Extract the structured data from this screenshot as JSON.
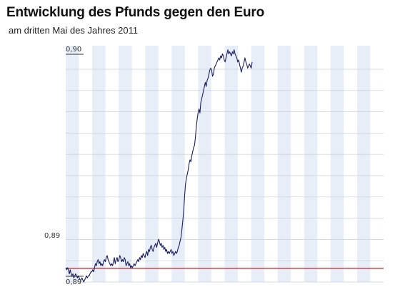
{
  "title": "Entwicklung des Pfunds gegen den Euro",
  "subtitle": "am dritten Mai des Jahres 2011",
  "colors": {
    "line": "#1a1f5e",
    "reference": "#c0202a",
    "band": "#e8eef8",
    "grid": "#c9cfd8"
  },
  "chart_data": {
    "type": "line",
    "title": "Entwicklung des Pfunds gegen den Euro",
    "subtitle": "am dritten Mai des Jahres 2011",
    "xlabel": "",
    "ylabel": "",
    "tick_labels": {
      "top": "0,90",
      "reference": "0,89",
      "bottom": "0,89"
    },
    "ylim": [
      0.8885,
      0.9001
    ],
    "reference_value": 0.88917,
    "grid": true,
    "legend": "none",
    "series": [
      {
        "values": [
          0.8892,
          0.8891,
          0.8892,
          0.8891,
          0.8889,
          0.8891,
          0.8889,
          0.8888,
          0.8889,
          0.8887,
          0.8888,
          0.8889,
          0.8888,
          0.8887,
          0.8888,
          0.8887,
          0.8886,
          0.8886,
          0.8887,
          0.8886,
          0.8885,
          0.8886,
          0.8887,
          0.8888,
          0.8887,
          0.8888,
          0.8888,
          0.8889,
          0.889,
          0.889,
          0.8891,
          0.889,
          0.8892,
          0.8894,
          0.8893,
          0.8895,
          0.8896,
          0.8894,
          0.8895,
          0.8893,
          0.8894,
          0.8893,
          0.8895,
          0.8896,
          0.8895,
          0.8897,
          0.8898,
          0.8896,
          0.8895,
          0.8894,
          0.8893,
          0.8894,
          0.8893,
          0.8895,
          0.8897,
          0.8894,
          0.8896,
          0.8897,
          0.8895,
          0.8896,
          0.8898,
          0.8897,
          0.8895,
          0.8896,
          0.8895,
          0.8897,
          0.8896,
          0.8893,
          0.8894,
          0.8895,
          0.8893,
          0.8894,
          0.8892,
          0.8893,
          0.8892,
          0.8893,
          0.8894,
          0.8893,
          0.8894,
          0.8895,
          0.8896,
          0.8895,
          0.8897,
          0.8896,
          0.8898,
          0.8897,
          0.8899,
          0.8898,
          0.8897,
          0.8899,
          0.89,
          0.8898,
          0.8901,
          0.89,
          0.8902,
          0.8903,
          0.8901,
          0.89,
          0.8902,
          0.8903,
          0.8904,
          0.8902,
          0.8904,
          0.8906,
          0.8905,
          0.8903,
          0.8904,
          0.8902,
          0.8903,
          0.8901,
          0.8902,
          0.89,
          0.8901,
          0.8899,
          0.89,
          0.8899,
          0.89,
          0.8901,
          0.8899,
          0.89,
          0.8898,
          0.8899,
          0.89,
          0.8899,
          0.89,
          0.8902,
          0.8903,
          0.8905,
          0.8907,
          0.8911,
          0.8915,
          0.892,
          0.8927,
          0.8933,
          0.8936,
          0.8938,
          0.894,
          0.8943,
          0.8945,
          0.8944,
          0.8947,
          0.8949,
          0.8951,
          0.8952,
          0.8956,
          0.8961,
          0.8965,
          0.8968,
          0.897,
          0.8968,
          0.8973,
          0.8975,
          0.8977,
          0.8979,
          0.8981,
          0.8983,
          0.8981,
          0.8984,
          0.8985,
          0.8987,
          0.8989,
          0.899,
          0.8989,
          0.8986,
          0.8987,
          0.899,
          0.8991,
          0.8992,
          0.8993,
          0.8994,
          0.8995,
          0.8994,
          0.8996,
          0.8995,
          0.8997,
          0.8996,
          0.8994,
          0.8993,
          0.8995,
          0.8997,
          0.8999,
          0.8997,
          0.8998,
          0.8997,
          0.8996,
          0.8998,
          0.8997,
          0.8999,
          0.8997,
          0.8996,
          0.8995,
          0.8993,
          0.8994,
          0.8992,
          0.899,
          0.8988,
          0.899,
          0.8991,
          0.8993,
          0.8995,
          0.8993,
          0.8992,
          0.899,
          0.8991,
          0.8992,
          0.8991,
          0.899,
          0.8993
        ]
      }
    ]
  }
}
